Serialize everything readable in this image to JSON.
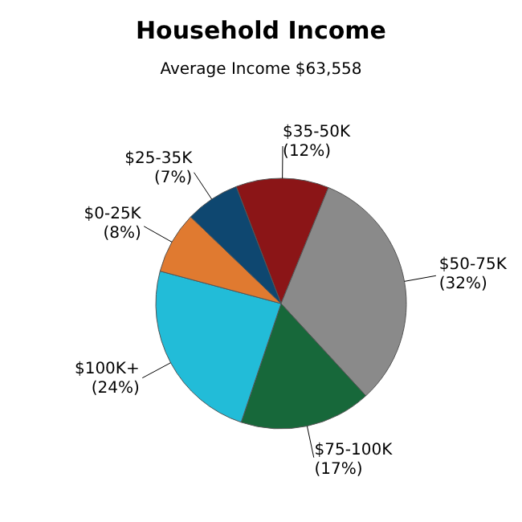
{
  "chart_data": {
    "type": "pie",
    "title": "Household Income",
    "subtitle": "Average Income  $63,558",
    "categories": [
      "$35-50K",
      "$50-75K",
      "$75-100K",
      "$100K+",
      "$0-25K",
      "$25-35K"
    ],
    "values": [
      12,
      32,
      17,
      24,
      8,
      7
    ],
    "colors": [
      "#8b1517",
      "#8a8a8a",
      "#17683a",
      "#22bcd8",
      "#e07a30",
      "#0e4770"
    ],
    "value_labels": [
      "(12%)",
      "(32%)",
      "(17%)",
      "(24%)",
      "(8%)",
      "(7%)"
    ]
  }
}
